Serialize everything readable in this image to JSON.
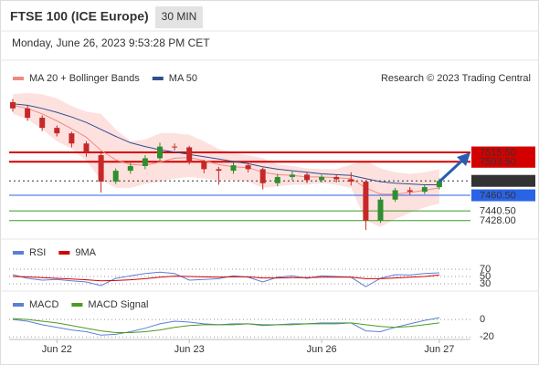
{
  "header": {
    "title": "FTSE 100 (ICE Europe)",
    "timeframe": "30 MIN",
    "date": "Monday, June 26, 2023 9:53:28 PM CET"
  },
  "chart_data": [
    {
      "type": "candlestick",
      "source": "Research © 2023 Trading Central",
      "x": [
        null,
        null,
        null,
        "Jun 22",
        null,
        null,
        null,
        null,
        null,
        null,
        null,
        null,
        "Jun 23",
        null,
        null,
        null,
        null,
        null,
        null,
        null,
        null,
        "Jun 26",
        null,
        null,
        null,
        null,
        null,
        null,
        null,
        "Jun 27"
      ],
      "open": [
        7580,
        7572,
        7560,
        7547,
        7540,
        7527,
        7512,
        7478,
        7492,
        7498,
        7508,
        7523,
        7522,
        7503,
        7494,
        7492,
        7499,
        7494,
        7476,
        7484,
        7487,
        7480,
        7484,
        7481,
        7478,
        7428,
        7455,
        7467,
        7465,
        7471
      ],
      "high": [
        7584,
        7576,
        7563,
        7550,
        7542,
        7530,
        7515,
        7495,
        7502,
        7512,
        7528,
        7527,
        7524,
        7506,
        7497,
        7503,
        7501,
        7496,
        7488,
        7491,
        7490,
        7487,
        7487,
        7490,
        7480,
        7458,
        7470,
        7471,
        7474,
        7482
      ],
      "low": [
        7568,
        7556,
        7543,
        7536,
        7522,
        7510,
        7464,
        7475,
        7488,
        7494,
        7504,
        7518,
        7500,
        7489,
        7474,
        7488,
        7490,
        7468,
        7472,
        7480,
        7476,
        7477,
        7477,
        7473,
        7416,
        7425,
        7452,
        7461,
        7462,
        7468
      ],
      "close": [
        7572,
        7560,
        7547,
        7540,
        7527,
        7515,
        7478,
        7492,
        7498,
        7508,
        7523,
        7522,
        7503,
        7494,
        7492,
        7499,
        7494,
        7476,
        7484,
        7487,
        7480,
        7484,
        7481,
        7478,
        7428,
        7455,
        7467,
        7465,
        7471,
        7479
      ],
      "up_color": "#2f8f2f",
      "down_color": "#c62828",
      "series": [
        {
          "name": "MA 20 + Bollinger Bands",
          "color": "#f08a80",
          "band_color": "#fde1df",
          "values": [
            7576,
            7572,
            7565,
            7556,
            7546,
            7535,
            7518,
            7506,
            7500,
            7499,
            7503,
            7508,
            7509,
            7505,
            7500,
            7497,
            7496,
            7490,
            7487,
            7486,
            7484,
            7484,
            7483,
            7482,
            7470,
            7462,
            7462,
            7464,
            7467,
            7470
          ],
          "upper": [
            7590,
            7592,
            7590,
            7585,
            7575,
            7568,
            7565,
            7545,
            7530,
            7532,
            7540,
            7540,
            7538,
            7530,
            7520,
            7515,
            7512,
            7508,
            7500,
            7498,
            7495,
            7494,
            7494,
            7500,
            7505,
            7495,
            7490,
            7488,
            7490,
            7494
          ],
          "lower": [
            7565,
            7558,
            7545,
            7530,
            7520,
            7505,
            7480,
            7470,
            7470,
            7475,
            7478,
            7482,
            7484,
            7482,
            7480,
            7480,
            7478,
            7470,
            7472,
            7474,
            7474,
            7476,
            7474,
            7470,
            7428,
            7420,
            7430,
            7438,
            7445,
            7450
          ]
        },
        {
          "name": "MA 50",
          "color": "#2f4f8f",
          "values": [
            7578,
            7576,
            7572,
            7567,
            7561,
            7554,
            7545,
            7536,
            7528,
            7523,
            7519,
            7516,
            7513,
            7510,
            7507,
            7504,
            7501,
            7497,
            7494,
            7492,
            7490,
            7488,
            7487,
            7486,
            7482,
            7478,
            7476,
            7475,
            7474,
            7474
          ]
        }
      ],
      "ylim": [
        7409,
        7594
      ],
      "levels": [
        {
          "value": 7515.5,
          "label": "7515.50",
          "color": "#d40000",
          "boxed": true
        },
        {
          "value": 7503.5,
          "label": "7503.50",
          "color": "#d40000",
          "boxed": true
        },
        {
          "value": 7479,
          "label": "7479.00",
          "color": "#333333",
          "boxed": true
        },
        {
          "value": 7460.5,
          "label": "7460.50",
          "color": "#2a64e6",
          "boxed": true
        },
        {
          "value": 7440.5,
          "label": "7440.50",
          "color": "#3a9a2a",
          "boxed": false
        },
        {
          "value": 7428,
          "label": "7428.00",
          "color": "#3a9a2a",
          "boxed": false
        }
      ]
    },
    {
      "type": "line",
      "series": [
        {
          "name": "RSI",
          "color": "#5b7fd6",
          "values": [
            55,
            45,
            40,
            42,
            38,
            35,
            25,
            45,
            52,
            58,
            62,
            58,
            40,
            42,
            44,
            52,
            48,
            35,
            48,
            52,
            45,
            52,
            50,
            48,
            22,
            45,
            55,
            54,
            58,
            60
          ]
        },
        {
          "name": "9MA",
          "color": "#d40000",
          "values": [
            50,
            49,
            47,
            45,
            43,
            41,
            38,
            39,
            41,
            44,
            48,
            51,
            50,
            49,
            48,
            49,
            49,
            46,
            46,
            47,
            47,
            48,
            48,
            48,
            44,
            44,
            46,
            48,
            50,
            54
          ]
        }
      ],
      "ylim": [
        0,
        100
      ],
      "yticks": [
        30,
        50,
        70
      ]
    },
    {
      "type": "line",
      "series": [
        {
          "name": "MACD",
          "color": "#5b7fd6",
          "values": [
            0,
            -2,
            -6,
            -9,
            -12,
            -14,
            -18,
            -17,
            -14,
            -10,
            -5,
            -2,
            -3,
            -5,
            -6,
            -5,
            -5,
            -7,
            -6,
            -5,
            -5,
            -4,
            -4,
            -4,
            -13,
            -14,
            -9,
            -5,
            -1,
            2
          ]
        },
        {
          "name": "MACD Signal",
          "color": "#4a9c1f",
          "values": [
            1,
            0,
            -2,
            -4,
            -7,
            -10,
            -13,
            -15,
            -15,
            -14,
            -12,
            -9,
            -7,
            -6,
            -6,
            -6,
            -5,
            -6,
            -6,
            -6,
            -5,
            -5,
            -5,
            -4,
            -6,
            -8,
            -9,
            -8,
            -6,
            -4
          ]
        }
      ],
      "ylim": [
        -26,
        21
      ],
      "yticks": [
        0,
        -20
      ]
    }
  ]
}
